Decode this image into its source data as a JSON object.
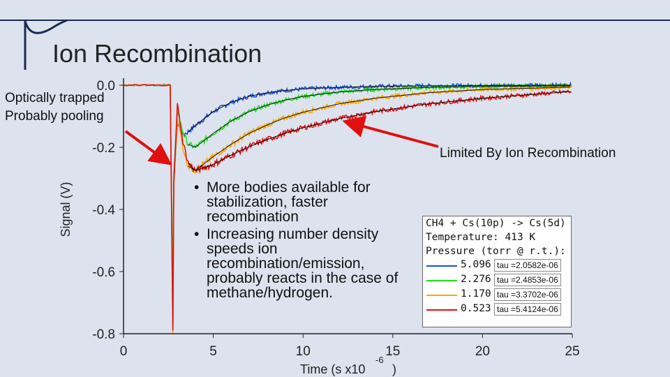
{
  "slide": {
    "title": "Ion Recombination",
    "note_left": [
      "Optically trapped",
      "Probably pooling"
    ],
    "note_right": "Limited By Ion Recombination",
    "bullets": [
      "More bodies available for stabilization, faster recombination",
      "Increasing number density speeds ion recombination/emission, probably reacts in the case of methane/hydrogen."
    ]
  },
  "legend": {
    "header": [
      "CH4 + Cs(10p) -> Cs(5d)",
      "Temperature: 413 K",
      "Pressure (torr @ r.t.):"
    ],
    "entries": [
      {
        "pressure": "5.096",
        "tau": "tau =2.0582e-06",
        "color": "#1f4fd6"
      },
      {
        "pressure": "2.276",
        "tau": "tau =2.4853e-06",
        "color": "#22dd22"
      },
      {
        "pressure": "1.170",
        "tau": "tau =3.3702e-06",
        "color": "#ffa500"
      },
      {
        "pressure": "0.523",
        "tau": "tau =5.4124e-06",
        "color": "#e01010"
      }
    ]
  },
  "chart_data": {
    "type": "line",
    "title": "",
    "xlabel": "Time (s x10",
    "xlabel_exp": "-6",
    "xlabel_end": ")",
    "ylabel": "Signal (V)",
    "xlim": [
      0,
      25
    ],
    "ylim": [
      -0.8,
      0.0
    ],
    "x_ticks": [
      0,
      5,
      10,
      15,
      20,
      25
    ],
    "y_ticks": [
      0.0,
      -0.2,
      -0.4,
      -0.6,
      -0.8
    ],
    "x_tick_labels": [
      "0",
      "5",
      "10",
      "15",
      "20",
      "25"
    ],
    "y_tick_labels": [
      "0.0",
      "-0.2",
      "-0.4",
      "-0.6",
      "-0.8"
    ],
    "fit_line_color": "#111111",
    "series": [
      {
        "color": "#1f4fd6",
        "x": [
          0,
          2.7,
          2.8,
          3.0,
          3.3,
          3.6,
          4,
          5,
          6,
          7,
          8,
          9,
          10,
          12,
          14,
          17,
          20,
          25
        ],
        "y": [
          0,
          0,
          -0.78,
          -0.12,
          -0.16,
          -0.15,
          -0.13,
          -0.085,
          -0.055,
          -0.036,
          -0.024,
          -0.017,
          -0.012,
          -0.007,
          -0.004,
          -0.002,
          -0.001,
          0
        ]
      },
      {
        "color": "#22dd22",
        "x": [
          0,
          2.7,
          2.8,
          3.0,
          3.3,
          3.6,
          4,
          5,
          6,
          7,
          8,
          9,
          10,
          12,
          14,
          17,
          20,
          25
        ],
        "y": [
          0,
          0,
          -0.72,
          -0.08,
          -0.15,
          -0.19,
          -0.2,
          -0.155,
          -0.115,
          -0.085,
          -0.064,
          -0.048,
          -0.036,
          -0.022,
          -0.014,
          -0.007,
          -0.004,
          -0.002
        ]
      },
      {
        "color": "#ffa500",
        "x": [
          0,
          2.7,
          2.8,
          3.0,
          3.3,
          3.6,
          4,
          5,
          6,
          7,
          8,
          9,
          10,
          12,
          14,
          17,
          20,
          25
        ],
        "y": [
          0,
          0,
          -0.8,
          -0.1,
          -0.2,
          -0.26,
          -0.275,
          -0.23,
          -0.19,
          -0.155,
          -0.128,
          -0.105,
          -0.087,
          -0.06,
          -0.042,
          -0.024,
          -0.014,
          -0.006
        ]
      },
      {
        "color": "#e01010",
        "x": [
          0,
          2.7,
          2.8,
          3.0,
          3.3,
          3.6,
          4,
          5,
          6,
          7,
          8,
          9,
          10,
          12,
          14,
          17,
          20,
          25
        ],
        "y": [
          0,
          0,
          -0.79,
          -0.06,
          -0.18,
          -0.25,
          -0.275,
          -0.255,
          -0.225,
          -0.198,
          -0.175,
          -0.155,
          -0.137,
          -0.108,
          -0.085,
          -0.06,
          -0.042,
          -0.02
        ]
      }
    ]
  }
}
